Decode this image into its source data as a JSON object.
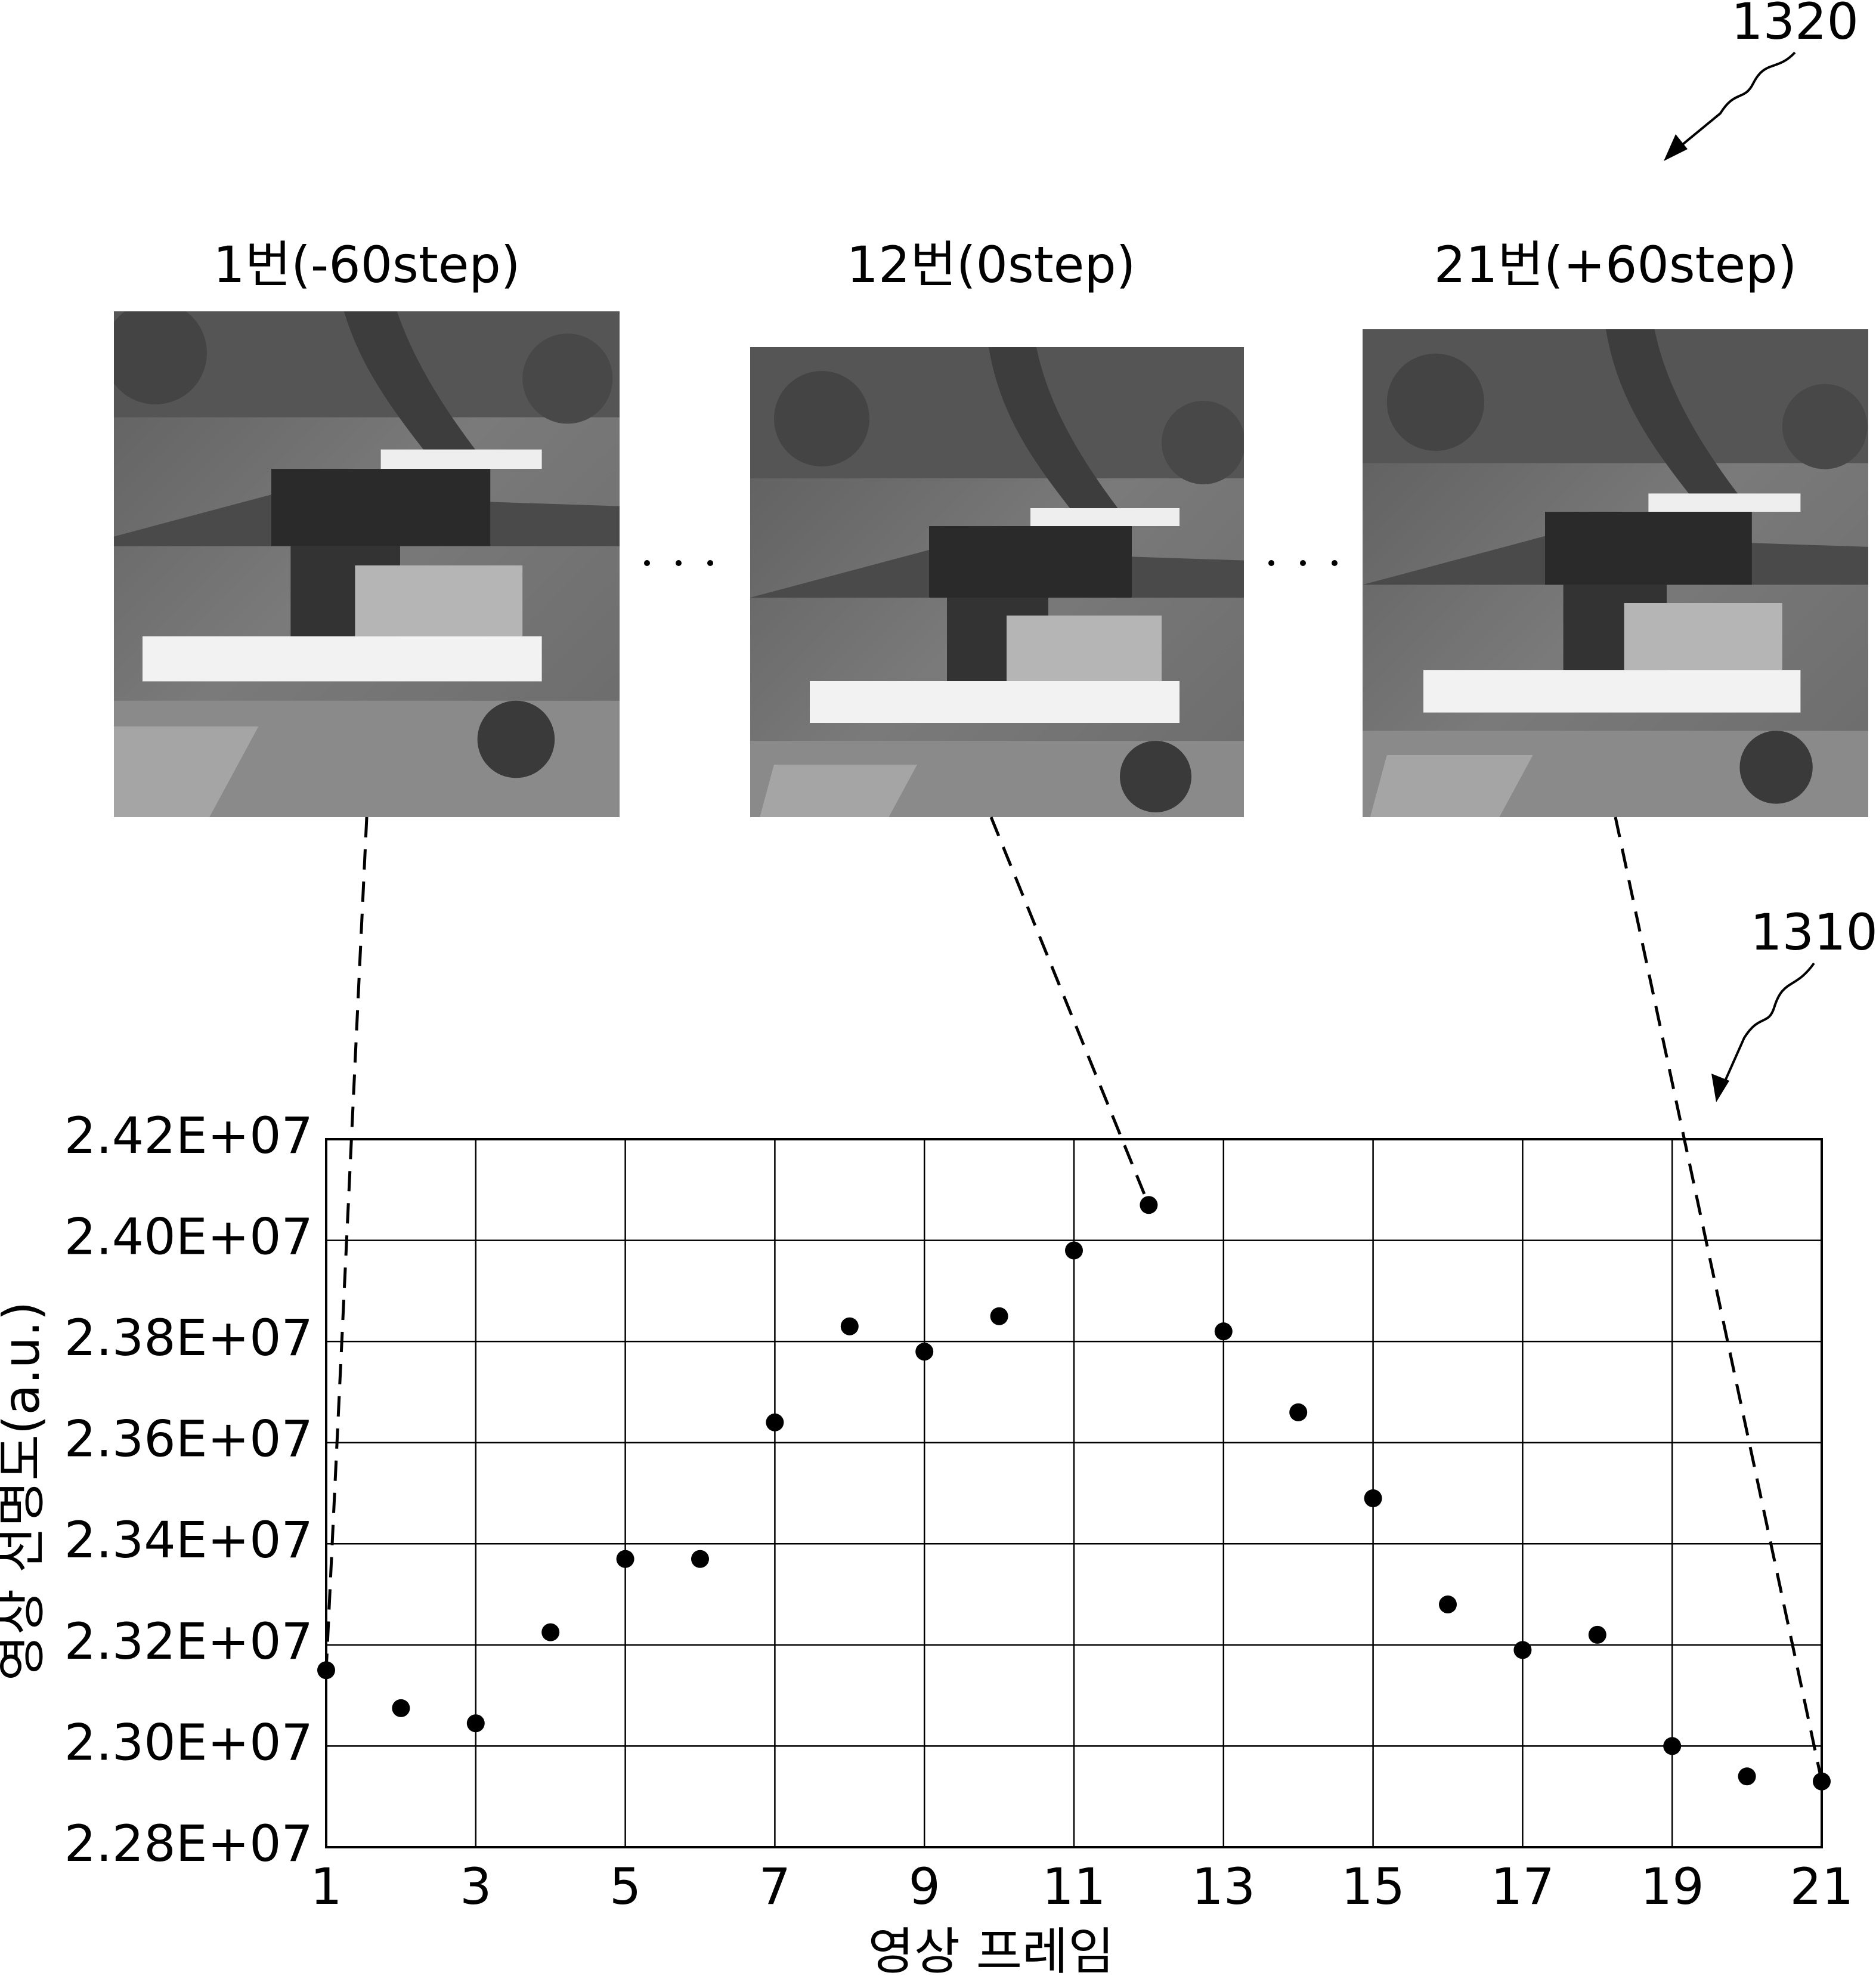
{
  "chart_data": {
    "type": "line",
    "x_label": "영상 프레임",
    "y_label": "영상 선명도(a.u.)",
    "x": [
      1,
      2,
      3,
      4,
      5,
      6,
      7,
      8,
      9,
      10,
      11,
      12,
      13,
      14,
      15,
      16,
      17,
      18,
      19,
      20,
      21
    ],
    "values": [
      23150000,
      23075000,
      23045000,
      23225000,
      23370000,
      23370000,
      23640000,
      23830000,
      23780000,
      23850000,
      23980000,
      24070000,
      23820000,
      23660000,
      23490000,
      23280000,
      23190000,
      23220000,
      23000000,
      22940000,
      22930000
    ],
    "color": "#000000",
    "marker": "circle",
    "xlim": [
      1,
      21
    ],
    "xticks": [
      1,
      3,
      5,
      7,
      9,
      11,
      13,
      15,
      17,
      19,
      21
    ],
    "ylim": [
      22800000,
      24200000
    ],
    "yticks": [
      {
        "value": 22800000,
        "label": "2.28E+07"
      },
      {
        "value": 23000000,
        "label": "2.30E+07"
      },
      {
        "value": 23200000,
        "label": "2.32E+07"
      },
      {
        "value": 23400000,
        "label": "2.34E+07"
      },
      {
        "value": 23600000,
        "label": "2.36E+07"
      },
      {
        "value": 23800000,
        "label": "2.38E+07"
      },
      {
        "value": 24000000,
        "label": "2.40E+07"
      },
      {
        "value": 24200000,
        "label": "2.42E+07"
      }
    ],
    "grid": true
  },
  "figure": {
    "reference_labels": [
      "1320",
      "1310"
    ],
    "panels": [
      {
        "caption": "1번(-60step)"
      },
      {
        "caption": "12번(0step)"
      },
      {
        "caption": "21번(+60step)"
      }
    ]
  }
}
